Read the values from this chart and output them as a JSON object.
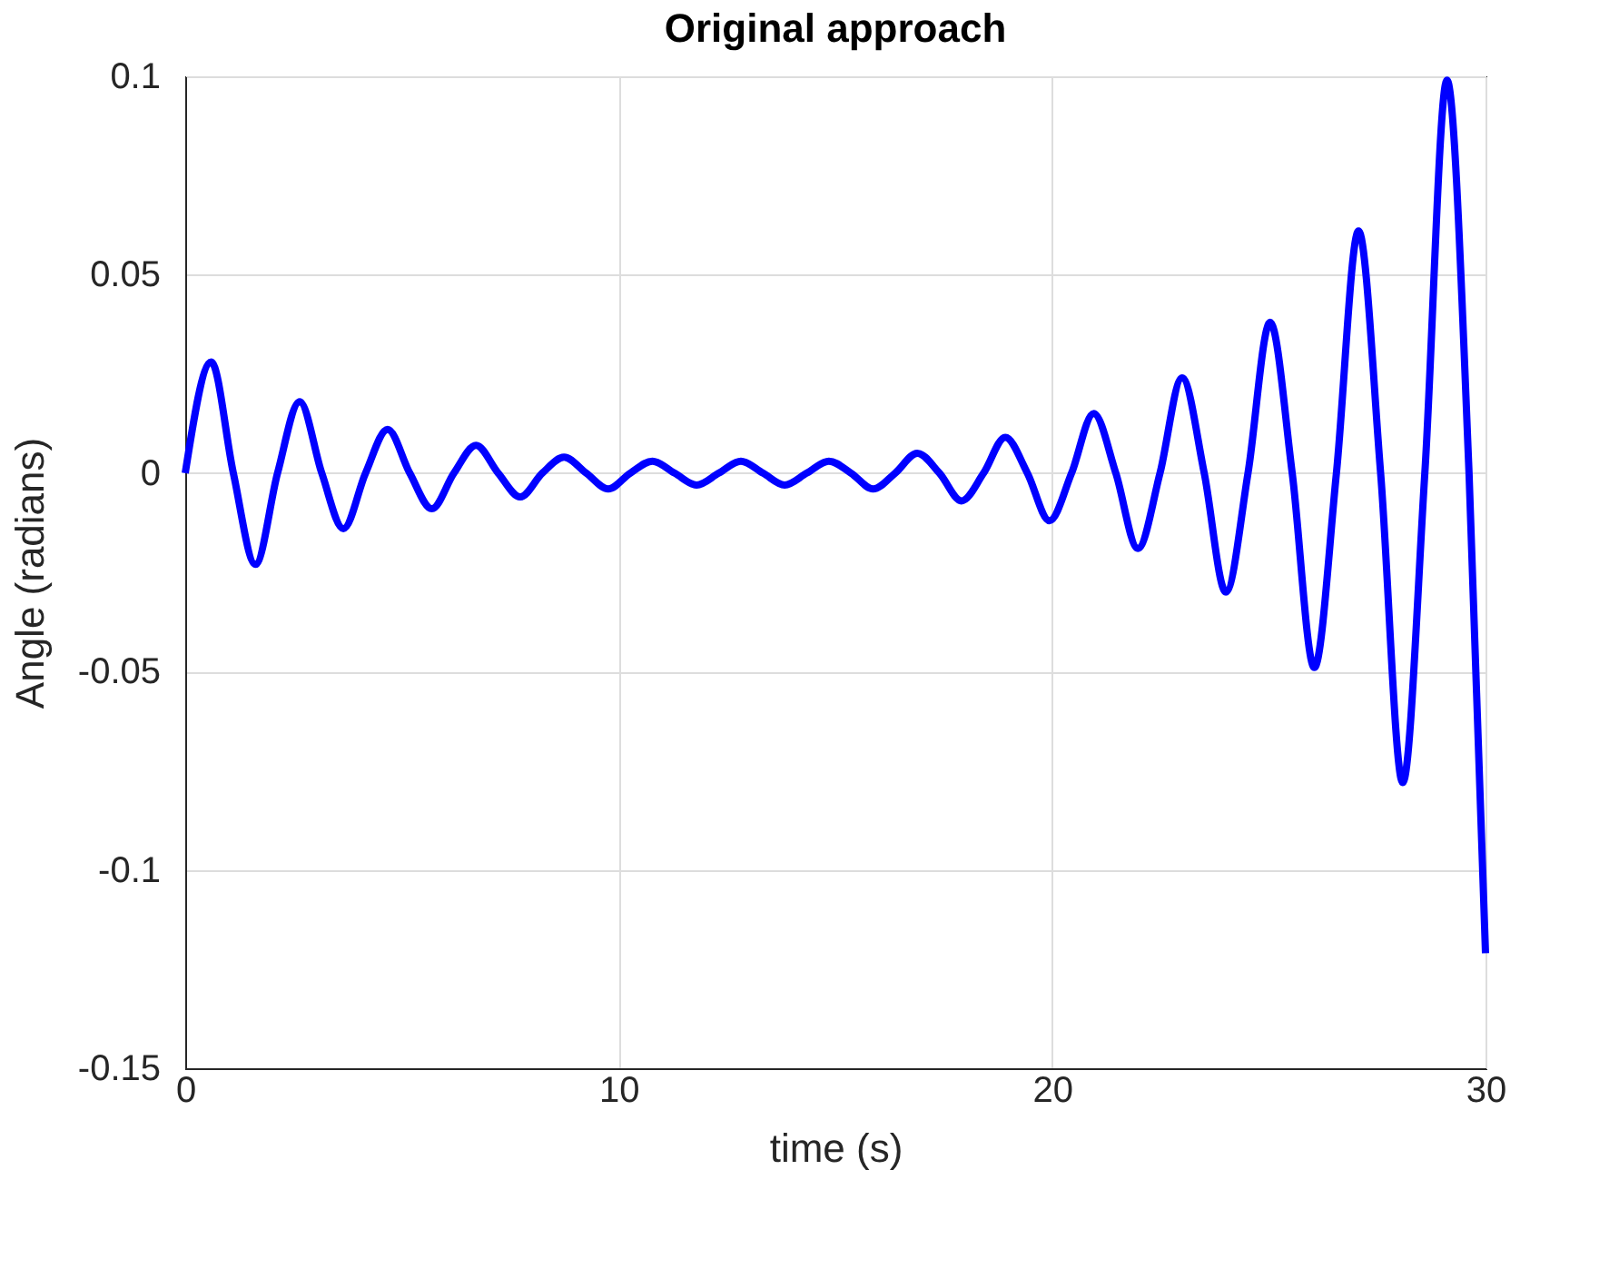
{
  "chart_data": {
    "type": "line",
    "title": "Original approach",
    "xlabel": "time (s)",
    "ylabel": "Angle (radians)",
    "x": [
      0,
      0.6,
      1.11,
      1.62,
      2.13,
      2.64,
      3.15,
      3.65,
      4.16,
      4.67,
      5.18,
      5.69,
      6.2,
      6.71,
      7.22,
      7.73,
      8.24,
      8.74,
      9.25,
      9.76,
      10.27,
      10.78,
      11.29,
      11.8,
      12.31,
      12.82,
      13.33,
      13.83,
      14.34,
      14.85,
      15.36,
      15.87,
      16.38,
      16.89,
      17.4,
      17.91,
      18.42,
      18.92,
      19.43,
      19.94,
      20.45,
      20.96,
      21.47,
      21.98,
      22.49,
      23.0,
      23.51,
      24.01,
      24.52,
      25.03,
      25.54,
      26.05,
      26.56,
      27.07,
      27.58,
      28.09,
      28.6,
      29.11,
      29.62,
      30
    ],
    "series": [
      {
        "color": "#0000ff",
        "values": [
          0,
          0.028,
          0,
          -0.023,
          0,
          0.018,
          0,
          -0.014,
          0,
          0.011,
          0,
          -0.009,
          0,
          0.007,
          0,
          -0.006,
          0,
          0.004,
          0,
          -0.004,
          0,
          0.003,
          0,
          -0.003,
          0,
          0.003,
          0,
          -0.003,
          0,
          0.003,
          0,
          -0.004,
          0,
          0.005,
          0,
          -0.007,
          0,
          0.009,
          0,
          -0.012,
          0,
          0.015,
          0,
          -0.019,
          0,
          0.024,
          0,
          -0.03,
          0,
          0.038,
          0,
          -0.049,
          0,
          0.061,
          0,
          -0.078,
          0,
          0.099,
          0,
          -0.121
        ]
      }
    ],
    "xlim": [
      0,
      30
    ],
    "xticks": [
      0,
      10,
      20,
      30
    ],
    "ylim": [
      -0.15,
      0.1
    ],
    "yticks": [
      -0.15,
      -0.1,
      -0.05,
      0,
      0.05,
      0.1
    ],
    "grid": true,
    "legend": false,
    "marker": "none",
    "line_style": "solid"
  }
}
